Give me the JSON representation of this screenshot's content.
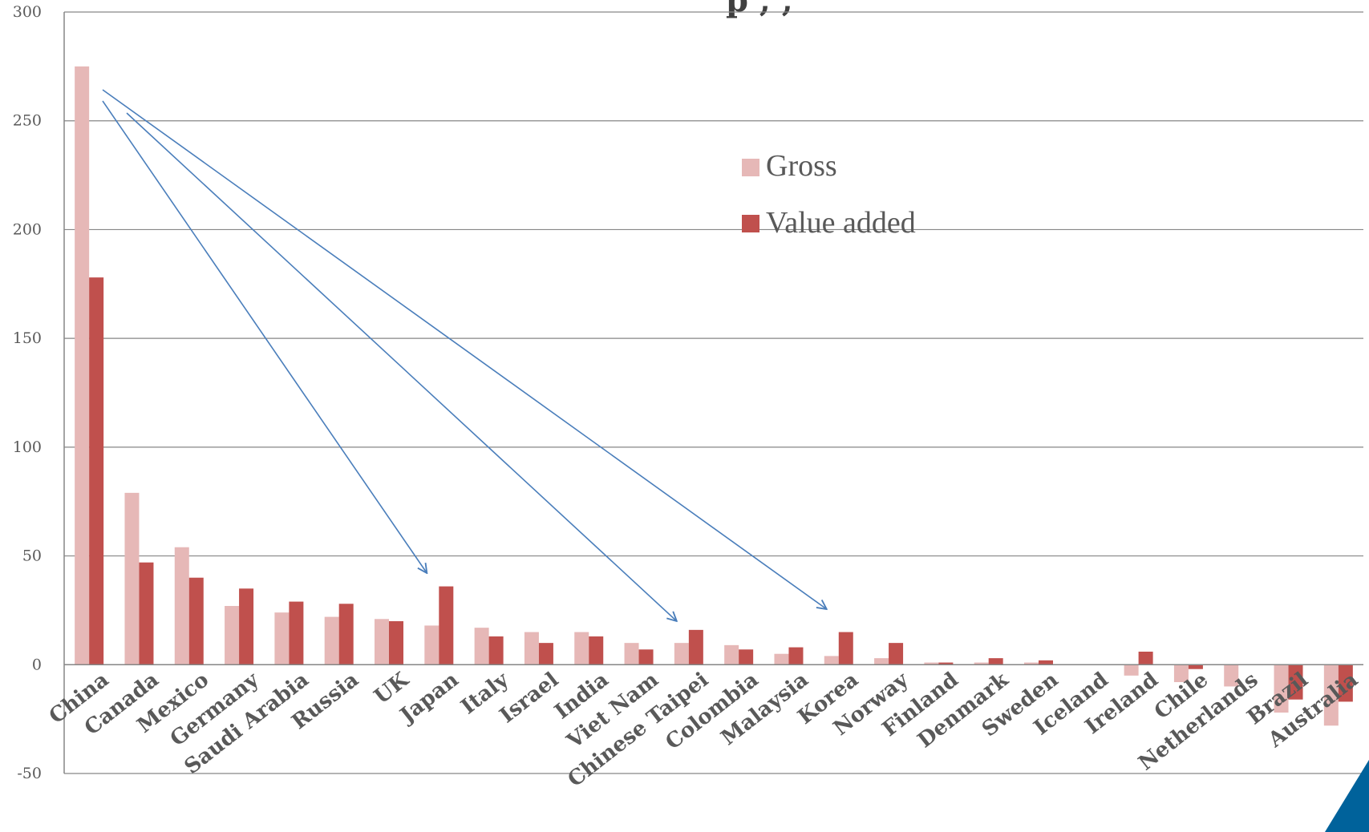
{
  "title_fragment": "p    ,    ,",
  "colors": {
    "gross": "#e6b8b7",
    "value_added": "#c0504d",
    "arrow": "#4a7ebb",
    "gridline": "#868686",
    "corner_accent": "#00629b"
  },
  "chart_data": {
    "type": "bar",
    "title": "",
    "xlabel": "",
    "ylabel": "",
    "ylim": [
      -50,
      300
    ],
    "yticks": [
      -50,
      0,
      50,
      100,
      150,
      200,
      250,
      300
    ],
    "grid": true,
    "legend_position": "upper-middle",
    "categories": [
      "China",
      "Canada",
      "Mexico",
      "Germany",
      "Saudi Arabia",
      "Russia",
      "UK",
      "Japan",
      "Italy",
      "Israel",
      "India",
      "Viet Nam",
      "Chinese Taipei",
      "Colombia",
      "Malaysia",
      "Korea",
      "Norway",
      "Finland",
      "Denmark",
      "Sweden",
      "Iceland",
      "Ireland",
      "Chile",
      "Netherlands",
      "Brazil",
      "Australia"
    ],
    "series": [
      {
        "name": "Gross",
        "values": [
          275,
          79,
          54,
          27,
          24,
          22,
          21,
          18,
          17,
          15,
          15,
          10,
          10,
          9,
          5,
          4,
          3,
          1,
          1,
          1,
          0,
          -5,
          -8,
          -10,
          -22,
          -28
        ]
      },
      {
        "name": "Value added",
        "values": [
          178,
          47,
          40,
          35,
          29,
          28,
          20,
          36,
          13,
          10,
          13,
          7,
          16,
          7,
          8,
          15,
          10,
          1,
          3,
          2,
          0,
          6,
          -2,
          0,
          -16,
          -17
        ]
      }
    ],
    "annotations": [
      {
        "type": "arrow",
        "from_category": "China",
        "to_category": "Japan"
      },
      {
        "type": "arrow",
        "from_category": "China",
        "to_category": "Chinese Taipei"
      },
      {
        "type": "arrow",
        "from_category": "China",
        "to_category": "Korea"
      }
    ]
  }
}
